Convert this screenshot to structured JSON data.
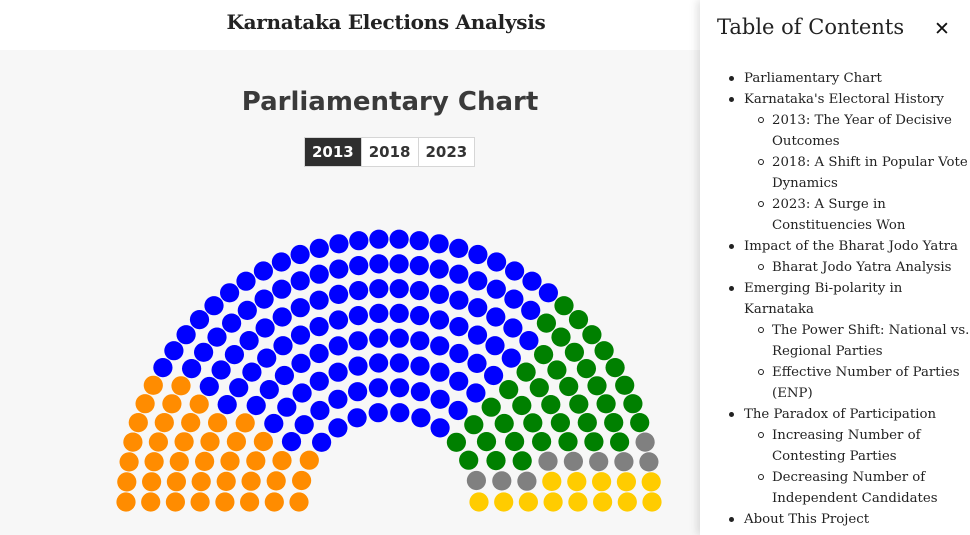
{
  "site": {
    "title": "Karnataka Elections Analysis"
  },
  "chart_section": {
    "title": "Parliamentary Chart",
    "years": [
      "2013",
      "2018",
      "2023"
    ],
    "selected_year": "2013"
  },
  "chart_data": {
    "type": "parliament",
    "year": "2013",
    "total_seats": 224,
    "series": [
      {
        "color": "#ff8c00",
        "value": 40
      },
      {
        "color": "#0000ff",
        "value": 122
      },
      {
        "color": "#008000",
        "value": 40
      },
      {
        "color": "#808080",
        "value": 9
      },
      {
        "color": "#ffcc00",
        "value": 13
      }
    ]
  },
  "toc": {
    "title": "Table of Contents",
    "close_icon": "close-icon",
    "items": [
      {
        "label": "Parliamentary Chart",
        "children": []
      },
      {
        "label": "Karnataka's Electoral History",
        "children": [
          "2013: The Year of Decisive Outcomes",
          "2018: A Shift in Popular Vote Dynamics",
          "2023: A Surge in Constituencies Won"
        ]
      },
      {
        "label": "Impact of the Bharat Jodo Yatra",
        "children": [
          "Bharat Jodo Yatra Analysis"
        ]
      },
      {
        "label": "Emerging Bi-polarity in Karnataka",
        "children": [
          "The Power Shift: National vs. Regional Parties",
          "Effective Number of Parties (ENP)"
        ]
      },
      {
        "label": "The Paradox of Participation",
        "children": [
          "Increasing Number of Contesting Parties",
          "Decreasing Number of Independent Candidates"
        ]
      },
      {
        "label": "About This Project",
        "children": []
      }
    ]
  }
}
